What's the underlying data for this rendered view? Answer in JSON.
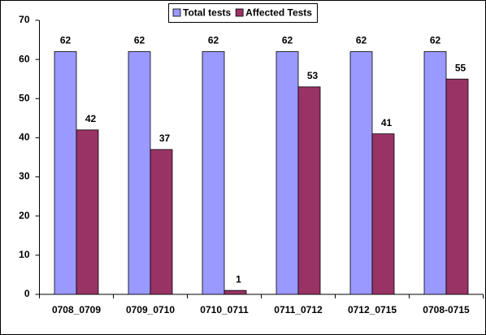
{
  "chart_data": {
    "type": "bar",
    "categories": [
      "0708_0709",
      "0709_0710",
      "0710_0711",
      "0711_0712",
      "0712_0715",
      "0708-0715"
    ],
    "series": [
      {
        "name": "Total tests",
        "color": "#9999ff",
        "values": [
          62,
          62,
          62,
          62,
          62,
          62
        ]
      },
      {
        "name": "Affected Tests",
        "color": "#993366",
        "values": [
          42,
          37,
          1,
          53,
          41,
          55
        ]
      }
    ],
    "ylim": [
      0,
      70
    ],
    "yticks": [
      0,
      10,
      20,
      30,
      40,
      50,
      60,
      70
    ],
    "grid": false,
    "legend": "top"
  }
}
